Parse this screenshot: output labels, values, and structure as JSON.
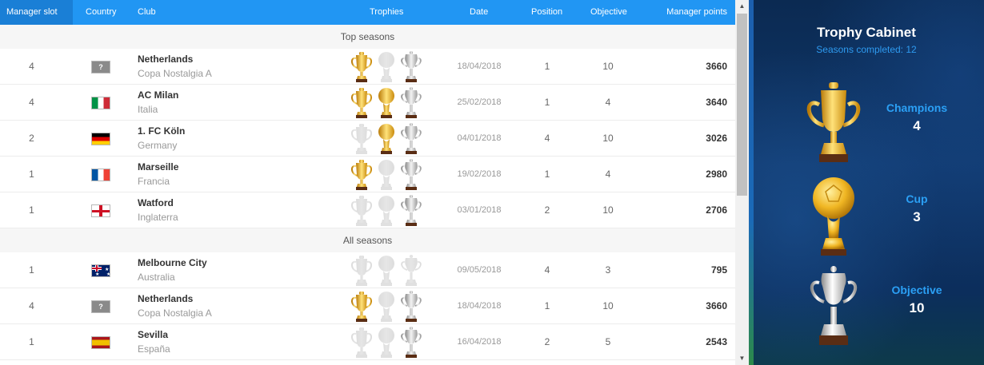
{
  "colors": {
    "header_bg": "#2196f3",
    "gold": "#e6a817",
    "silver": "#b8b8b8",
    "faded": "#dddddd",
    "cabinet_bg": "#0f3566",
    "cabinet_accent": "#2ba0f5"
  },
  "header": {
    "manager_slot": "Manager slot",
    "country": "Country",
    "club": "Club",
    "trophies": "Trophies",
    "date": "Date",
    "position": "Position",
    "objective": "Objective",
    "manager_points": "Manager points"
  },
  "sections": {
    "top": "Top seasons",
    "all": "All seasons"
  },
  "top_seasons": [
    {
      "slot": "4",
      "flag": "unknown",
      "flag_text": "?",
      "club": "Netherlands",
      "league": "Copa Nostalgia A",
      "trophies": [
        "gold-champions",
        "faded-cup",
        "silver-objective"
      ],
      "date": "18/04/2018",
      "position": "1",
      "objective": "10",
      "points": "3660"
    },
    {
      "slot": "4",
      "flag": "it",
      "club": "AC Milan",
      "league": "Italia",
      "trophies": [
        "gold-champions",
        "gold-cup",
        "silver-objective"
      ],
      "date": "25/02/2018",
      "position": "1",
      "objective": "4",
      "points": "3640"
    },
    {
      "slot": "2",
      "flag": "de",
      "club": "1. FC Köln",
      "league": "Germany",
      "trophies": [
        "faded-champions",
        "gold-cup",
        "silver-objective"
      ],
      "date": "04/01/2018",
      "position": "4",
      "objective": "10",
      "points": "3026"
    },
    {
      "slot": "1",
      "flag": "fr",
      "club": "Marseille",
      "league": "Francia",
      "trophies": [
        "gold-champions",
        "faded-cup",
        "silver-objective"
      ],
      "date": "19/02/2018",
      "position": "1",
      "objective": "4",
      "points": "2980"
    },
    {
      "slot": "1",
      "flag": "en",
      "club": "Watford",
      "league": "Inglaterra",
      "trophies": [
        "faded-champions",
        "faded-cup",
        "silver-objective"
      ],
      "date": "03/01/2018",
      "position": "2",
      "objective": "10",
      "points": "2706"
    }
  ],
  "all_seasons": [
    {
      "slot": "1",
      "flag": "au",
      "club": "Melbourne City",
      "league": "Australia",
      "trophies": [
        "faded-champions",
        "faded-cup",
        "faded-objective"
      ],
      "date": "09/05/2018",
      "position": "4",
      "objective": "3",
      "points": "795"
    },
    {
      "slot": "4",
      "flag": "unknown",
      "flag_text": "?",
      "club": "Netherlands",
      "league": "Copa Nostalgia A",
      "trophies": [
        "gold-champions",
        "faded-cup",
        "silver-objective"
      ],
      "date": "18/04/2018",
      "position": "1",
      "objective": "10",
      "points": "3660"
    },
    {
      "slot": "1",
      "flag": "es",
      "club": "Sevilla",
      "league": "España",
      "trophies": [
        "faded-champions",
        "faded-cup",
        "silver-objective"
      ],
      "date": "16/04/2018",
      "position": "2",
      "objective": "5",
      "points": "2543"
    }
  ],
  "cabinet": {
    "title": "Trophy Cabinet",
    "subtitle": "Seasons completed: 12",
    "items": [
      {
        "label": "Champions",
        "count": "4",
        "icon": "gold-champions-trophy-icon"
      },
      {
        "label": "Cup",
        "count": "3",
        "icon": "gold-cup-trophy-icon"
      },
      {
        "label": "Objective",
        "count": "10",
        "icon": "silver-objective-trophy-icon"
      }
    ]
  }
}
